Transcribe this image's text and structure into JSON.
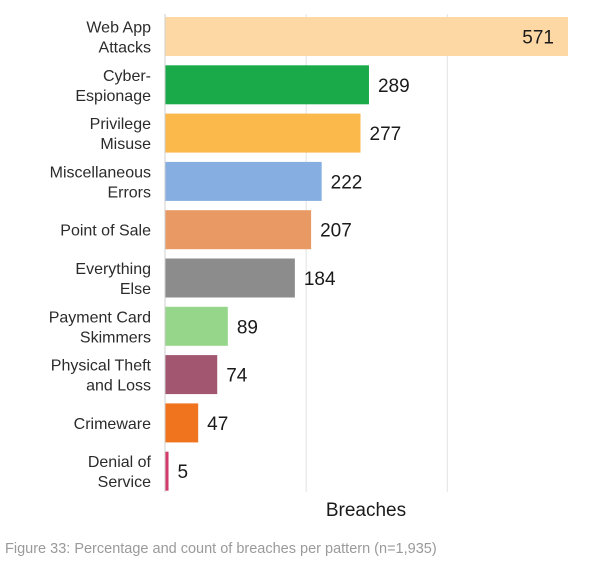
{
  "chart_data": {
    "type": "bar",
    "orientation": "horizontal",
    "categories": [
      "Web App Attacks",
      "Cyber-Espionage",
      "Privilege Misuse",
      "Miscellaneous Errors",
      "Point of Sale",
      "Everything Else",
      "Payment Card Skimmers",
      "Physical Theft and Loss",
      "Crimeware",
      "Denial of Service"
    ],
    "category_label_lines": [
      [
        "Web App",
        "Attacks"
      ],
      [
        "Cyber-",
        "Espionage"
      ],
      [
        "Privilege",
        "Misuse"
      ],
      [
        "Miscellaneous",
        "Errors"
      ],
      [
        "Point of Sale"
      ],
      [
        "Everything",
        "Else"
      ],
      [
        "Payment Card",
        "Skimmers"
      ],
      [
        "Physical Theft",
        "and Loss"
      ],
      [
        "Crimeware"
      ],
      [
        "Denial of",
        "Service"
      ]
    ],
    "values": [
      571,
      289,
      277,
      222,
      207,
      184,
      89,
      74,
      47,
      5
    ],
    "data_labels": [
      "571",
      "289",
      "277",
      "222",
      "207",
      "184",
      "89",
      "74",
      "47",
      "5"
    ],
    "colors": [
      "#fdd8a5",
      "#1aaa4a",
      "#fbb94c",
      "#86aee0",
      "#e99a64",
      "#8c8c8c",
      "#95d68a",
      "#a2566f",
      "#f0731e",
      "#d33c6a"
    ],
    "xlabel": "Breaches",
    "xlim": [
      0,
      580
    ],
    "grid": true,
    "legend": "none"
  },
  "caption": "Figure 33: Percentage and count of breaches per pattern (n=1,935)"
}
